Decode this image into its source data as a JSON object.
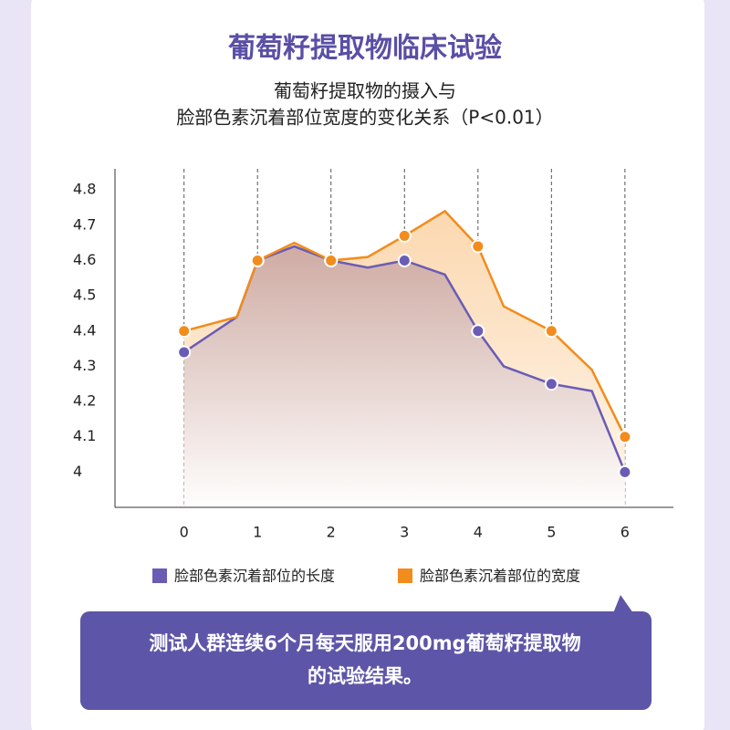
{
  "chart_data": {
    "type": "line",
    "title": "葡萄籽提取物临床试验",
    "subtitle": [
      "葡萄籽提取物的摄入与",
      "脸部色素沉着部位宽度的变化关系（P<0.01）"
    ],
    "x": [
      0,
      0.72,
      1,
      1.5,
      2,
      2.5,
      3,
      3.55,
      4,
      4.35,
      5,
      5.55,
      6
    ],
    "series": [
      {
        "name": "脸部色素沉着部位的长度",
        "color": "#6a5cb5",
        "values": [
          4.34,
          4.44,
          4.6,
          4.64,
          4.6,
          4.58,
          4.6,
          4.56,
          4.4,
          4.3,
          4.25,
          4.23,
          4.0
        ]
      },
      {
        "name": "脸部色素沉着部位的宽度",
        "color": "#f28c1c",
        "values": [
          4.4,
          4.44,
          4.6,
          4.65,
          4.6,
          4.61,
          4.67,
          4.74,
          4.64,
          4.47,
          4.4,
          4.29,
          4.1
        ]
      }
    ],
    "xlim": [
      -0.94,
      6.66
    ],
    "xticks": [
      0,
      1,
      2,
      3,
      4,
      5,
      6
    ],
    "ylim": [
      3.9,
      4.86
    ],
    "yticks": [
      4,
      4.1,
      4.2,
      4.3,
      4.4,
      4.5,
      4.6,
      4.7,
      4.8
    ],
    "grid": true,
    "annotation": [
      "测试人群连续6个月每天服用200mg葡萄籽提取物",
      "的试验结果。"
    ]
  }
}
